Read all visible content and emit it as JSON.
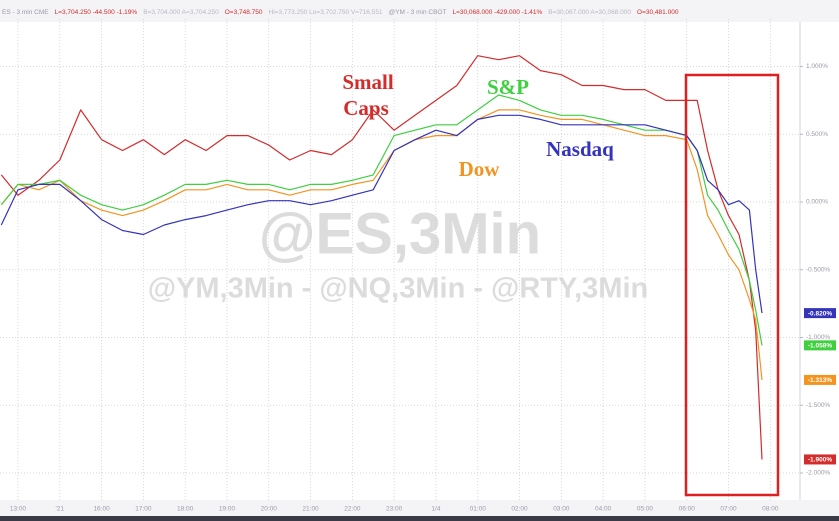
{
  "chart_data": {
    "type": "line",
    "header": [
      {
        "text": "ES - 3 min  CME",
        "color": "#9a9aa8"
      },
      {
        "text": "L=3,704.250 -44.500 -1.19%",
        "color": "#d42b2b"
      },
      {
        "text": "B=3,704.000  A=3,704.250",
        "color": "#b8b8c4"
      },
      {
        "text": "O=3,748.750",
        "color": "#d42b2b"
      },
      {
        "text": "Hi=3,773.250  Lo=3,702.750  V=716,551",
        "color": "#b8b8c4"
      },
      {
        "text": "@YM - 3 min  CBOT",
        "color": "#9a9aa8"
      },
      {
        "text": "L=30,068.000 -429.000 -1.41%",
        "color": "#d42b2b"
      },
      {
        "text": "B=30,067.000  A=30,068.000",
        "color": "#b8b8c4"
      },
      {
        "text": "O=30,481.000",
        "color": "#d42b2b"
      }
    ],
    "watermark": [
      "@ES,3Min",
      "@YM,3Min - @NQ,3Min - @RTY,3Min"
    ],
    "annotations": [
      {
        "text": "Small",
        "color": "#d42b2b"
      },
      {
        "text": "Caps",
        "color": "#d42b2b"
      },
      {
        "text": "S&P",
        "color": "#3fcf3f"
      },
      {
        "text": "Dow",
        "color": "#f39421"
      },
      {
        "text": "Nasdaq",
        "color": "#3333bb"
      }
    ],
    "x": [
      -0.4,
      0,
      0.5,
      1,
      1.5,
      2,
      2.5,
      3,
      3.5,
      4,
      4.5,
      5,
      5.5,
      6,
      6.5,
      7,
      7.5,
      8,
      8.5,
      9,
      9.5,
      10,
      10.5,
      11,
      11.5,
      12,
      12.5,
      13,
      13.5,
      14,
      14.5,
      15,
      15.5,
      16,
      16.25,
      16.5,
      16.75,
      17,
      17.25,
      17.5,
      17.65,
      17.8
    ],
    "xlim": [
      -0.43,
      18.71
    ],
    "xticks": [
      {
        "value": 0,
        "label": "13:00"
      },
      {
        "value": 1,
        "label": "'21"
      },
      {
        "value": 2,
        "label": "16:00"
      },
      {
        "value": 3,
        "label": "17:00"
      },
      {
        "value": 4,
        "label": "18:00"
      },
      {
        "value": 5,
        "label": "19:00"
      },
      {
        "value": 6,
        "label": "20:00"
      },
      {
        "value": 7,
        "label": "21:00"
      },
      {
        "value": 8,
        "label": "22:00"
      },
      {
        "value": 9,
        "label": "23:00"
      },
      {
        "value": 10,
        "label": "1/4"
      },
      {
        "value": 11,
        "label": "01:00"
      },
      {
        "value": 12,
        "label": "02:00"
      },
      {
        "value": 13,
        "label": "03:00"
      },
      {
        "value": 14,
        "label": "04:00"
      },
      {
        "value": 15,
        "label": "05:00"
      },
      {
        "value": 16,
        "label": "06:00"
      },
      {
        "value": 17,
        "label": "07:00"
      },
      {
        "value": 18,
        "label": "08:00"
      }
    ],
    "ylim": [
      -2.2,
      1.35
    ],
    "yticks": [
      {
        "value": 1,
        "label": "1.000%"
      },
      {
        "value": 0.5,
        "label": "0.500%"
      },
      {
        "value": 0,
        "label": "0.000%"
      },
      {
        "value": -0.5,
        "label": "-0.500%"
      },
      {
        "value": -1,
        "label": "-1.000%"
      },
      {
        "value": -1.5,
        "label": "-1.500%"
      },
      {
        "value": -2,
        "label": "-2.000%"
      }
    ],
    "grid": true,
    "series": [
      {
        "name": "Small Caps",
        "color": "#d42b2b",
        "last": {
          "value": -1.9,
          "label": "-1.900%"
        },
        "values": [
          0.2,
          0.05,
          0.16,
          0.31,
          0.68,
          0.46,
          0.38,
          0.46,
          0.35,
          0.46,
          0.38,
          0.49,
          0.49,
          0.42,
          0.31,
          0.38,
          0.35,
          0.46,
          0.68,
          0.53,
          0.64,
          0.75,
          0.86,
          1.08,
          1.05,
          1.08,
          0.97,
          0.94,
          0.86,
          0.86,
          0.83,
          0.83,
          0.75,
          0.75,
          0.75,
          0.38,
          0.09,
          -0.1,
          -0.24,
          -0.58,
          -0.95,
          -1.9
        ]
      },
      {
        "name": "Dow",
        "color": "#f39421",
        "last": {
          "value": -1.313,
          "label": "-1.313%"
        },
        "values": [
          -0.02,
          0.13,
          0.09,
          0.16,
          0.01,
          -0.06,
          -0.1,
          -0.06,
          0.01,
          0.09,
          0.09,
          0.13,
          0.09,
          0.09,
          0.05,
          0.09,
          0.09,
          0.13,
          0.16,
          0.38,
          0.46,
          0.49,
          0.49,
          0.61,
          0.68,
          0.68,
          0.64,
          0.61,
          0.61,
          0.57,
          0.53,
          0.49,
          0.49,
          0.46,
          0.24,
          -0.1,
          -0.24,
          -0.39,
          -0.5,
          -0.72,
          -0.87,
          -1.313
        ]
      },
      {
        "name": "S&P",
        "color": "#3fcf3f",
        "last": {
          "value": -1.058,
          "label": "-1.058%"
        },
        "values": [
          -0.02,
          0.13,
          0.13,
          0.16,
          0.05,
          -0.02,
          -0.06,
          -0.02,
          0.05,
          0.13,
          0.13,
          0.16,
          0.13,
          0.13,
          0.09,
          0.13,
          0.13,
          0.16,
          0.2,
          0.49,
          0.53,
          0.57,
          0.57,
          0.68,
          0.79,
          0.75,
          0.68,
          0.64,
          0.64,
          0.61,
          0.57,
          0.53,
          0.53,
          0.49,
          0.38,
          0.05,
          -0.06,
          -0.21,
          -0.35,
          -0.58,
          -0.8,
          -1.058
        ]
      },
      {
        "name": "Nasdaq",
        "color": "#3333bb",
        "last": {
          "value": -0.82,
          "label": "-0.820%"
        },
        "values": [
          -0.17,
          0.09,
          0.13,
          0.13,
          0.01,
          -0.13,
          -0.21,
          -0.24,
          -0.17,
          -0.13,
          -0.1,
          -0.06,
          -0.02,
          0.01,
          0.01,
          -0.02,
          0.01,
          0.05,
          0.09,
          0.38,
          0.46,
          0.53,
          0.49,
          0.61,
          0.64,
          0.64,
          0.61,
          0.57,
          0.57,
          0.57,
          0.57,
          0.57,
          0.53,
          0.49,
          0.38,
          0.16,
          0.09,
          -0.02,
          0.01,
          -0.06,
          -0.5,
          -0.82
        ]
      }
    ]
  }
}
